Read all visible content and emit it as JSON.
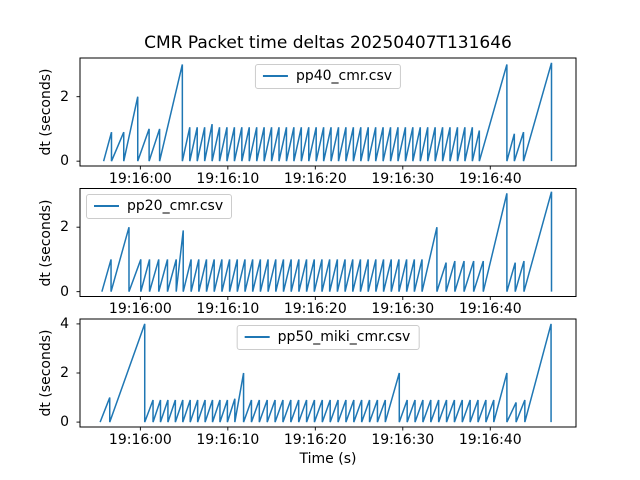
{
  "title": "CMR Packet time deltas 20250407T131646",
  "xlabel": "Time (s)",
  "ylabel": "dt (seconds)",
  "colors": {
    "line": "#1f77b4",
    "axes": "#000000",
    "text": "#000000",
    "legend_border": "#cccccc",
    "background": "#ffffff"
  },
  "x_axis": {
    "time_reference": "19:16:00",
    "tick_positions_s": [
      0,
      10,
      20,
      30,
      40
    ],
    "tick_labels": [
      "19:16:00",
      "19:16:10",
      "19:16:20",
      "19:16:30",
      "19:16:40"
    ],
    "xlim_s": [
      -6.9,
      49.8
    ]
  },
  "chart_data": [
    {
      "type": "line",
      "legend": "pp40_cmr.csv",
      "legend_loc": "upper center",
      "ylabel": "dt (seconds)",
      "yticks": [
        0,
        2
      ],
      "ytick_labels": [
        "0",
        "2"
      ],
      "ylim": [
        -0.15,
        3.2
      ],
      "start_s": -4.2,
      "points_time_dt": [
        [
          -3.3,
          0.9
        ],
        [
          -1.9,
          0.9
        ],
        [
          -0.3,
          2.0
        ],
        [
          1.0,
          1.0
        ],
        [
          2.2,
          1.0
        ],
        [
          4.8,
          3.0
        ],
        [
          5.65,
          1.05
        ],
        [
          6.5,
          1.05
        ],
        [
          7.35,
          1.05
        ],
        [
          8.2,
          1.15
        ],
        [
          9.05,
          1.05
        ],
        [
          9.9,
          1.05
        ],
        [
          10.75,
          1.05
        ],
        [
          11.6,
          1.05
        ],
        [
          12.45,
          1.05
        ],
        [
          13.3,
          1.05
        ],
        [
          14.15,
          1.05
        ],
        [
          15.0,
          1.05
        ],
        [
          15.85,
          1.05
        ],
        [
          16.7,
          1.05
        ],
        [
          17.55,
          1.05
        ],
        [
          18.4,
          1.05
        ],
        [
          19.25,
          1.05
        ],
        [
          20.1,
          1.05
        ],
        [
          20.95,
          1.05
        ],
        [
          21.8,
          1.05
        ],
        [
          22.65,
          1.05
        ],
        [
          23.5,
          1.05
        ],
        [
          24.35,
          1.05
        ],
        [
          25.2,
          1.05
        ],
        [
          26.05,
          1.05
        ],
        [
          26.9,
          1.05
        ],
        [
          27.75,
          1.05
        ],
        [
          28.6,
          1.05
        ],
        [
          29.45,
          1.05
        ],
        [
          30.3,
          1.05
        ],
        [
          31.15,
          1.05
        ],
        [
          32.0,
          1.05
        ],
        [
          32.85,
          1.05
        ],
        [
          33.7,
          1.05
        ],
        [
          34.55,
          1.05
        ],
        [
          35.4,
          1.05
        ],
        [
          36.25,
          1.05
        ],
        [
          37.1,
          1.05
        ],
        [
          37.95,
          1.05
        ],
        [
          38.75,
          0.95
        ],
        [
          41.9,
          3.0
        ],
        [
          42.75,
          0.85
        ],
        [
          43.8,
          0.9
        ],
        [
          47.0,
          3.05
        ]
      ]
    },
    {
      "type": "line",
      "legend": "pp20_cmr.csv",
      "legend_loc": "upper left",
      "ylabel": "dt (seconds)",
      "yticks": [
        0,
        2
      ],
      "ytick_labels": [
        "0",
        "2"
      ],
      "ylim": [
        -0.15,
        3.2
      ],
      "start_s": -4.4,
      "points_time_dt": [
        [
          -3.35,
          1.0
        ],
        [
          -1.3,
          2.0
        ],
        [
          0.05,
          1.0
        ],
        [
          1.05,
          1.0
        ],
        [
          2.1,
          1.0
        ],
        [
          3.1,
          1.0
        ],
        [
          4.1,
          1.0
        ],
        [
          4.9,
          1.9
        ],
        [
          5.8,
          1.0
        ],
        [
          6.68,
          1.0
        ],
        [
          7.56,
          1.0
        ],
        [
          8.44,
          1.0
        ],
        [
          9.32,
          1.0
        ],
        [
          10.2,
          1.0
        ],
        [
          11.08,
          1.0
        ],
        [
          11.96,
          1.0
        ],
        [
          12.84,
          1.0
        ],
        [
          13.72,
          1.0
        ],
        [
          14.6,
          1.0
        ],
        [
          15.48,
          1.0
        ],
        [
          16.36,
          1.0
        ],
        [
          17.24,
          1.0
        ],
        [
          18.12,
          1.0
        ],
        [
          19.0,
          1.0
        ],
        [
          19.88,
          1.0
        ],
        [
          20.76,
          1.0
        ],
        [
          21.64,
          1.0
        ],
        [
          22.52,
          1.0
        ],
        [
          23.4,
          1.0
        ],
        [
          24.28,
          1.0
        ],
        [
          25.16,
          1.0
        ],
        [
          26.04,
          1.0
        ],
        [
          26.92,
          1.0
        ],
        [
          27.8,
          1.0
        ],
        [
          28.68,
          1.0
        ],
        [
          29.56,
          1.0
        ],
        [
          30.44,
          1.0
        ],
        [
          31.32,
          1.0
        ],
        [
          32.2,
          1.0
        ],
        [
          33.9,
          2.0
        ],
        [
          34.95,
          0.9
        ],
        [
          35.95,
          0.95
        ],
        [
          37.0,
          0.95
        ],
        [
          38.1,
          0.95
        ],
        [
          39.2,
          0.95
        ],
        [
          41.9,
          3.05
        ],
        [
          42.85,
          0.9
        ],
        [
          43.85,
          0.95
        ],
        [
          47.0,
          3.1
        ]
      ]
    },
    {
      "type": "line",
      "legend": "pp50_miki_cmr.csv",
      "legend_loc": "upper center",
      "ylabel": "dt (seconds)",
      "yticks": [
        0,
        2,
        4
      ],
      "ytick_labels": [
        "0",
        "2",
        "4"
      ],
      "ylim": [
        -0.2,
        4.2
      ],
      "start_s": -4.6,
      "points_time_dt": [
        [
          -3.5,
          1.0
        ],
        [
          0.5,
          4.0
        ],
        [
          1.45,
          0.9
        ],
        [
          2.3,
          0.9
        ],
        [
          3.15,
          0.9
        ],
        [
          4.0,
          0.9
        ],
        [
          4.85,
          0.9
        ],
        [
          5.7,
          0.9
        ],
        [
          6.55,
          0.9
        ],
        [
          7.4,
          0.9
        ],
        [
          8.25,
          0.9
        ],
        [
          9.1,
          0.9
        ],
        [
          9.95,
          0.9
        ],
        [
          10.8,
          0.95
        ],
        [
          11.8,
          2.0
        ],
        [
          12.7,
          0.9
        ],
        [
          13.6,
          0.9
        ],
        [
          14.5,
          0.9
        ],
        [
          15.4,
          0.9
        ],
        [
          16.3,
          0.9
        ],
        [
          17.2,
          0.9
        ],
        [
          18.1,
          0.9
        ],
        [
          19.0,
          0.9
        ],
        [
          19.9,
          0.9
        ],
        [
          20.8,
          0.9
        ],
        [
          21.7,
          0.9
        ],
        [
          22.6,
          0.9
        ],
        [
          23.5,
          0.9
        ],
        [
          24.4,
          0.9
        ],
        [
          25.3,
          0.9
        ],
        [
          26.2,
          0.9
        ],
        [
          27.1,
          0.9
        ],
        [
          28.0,
          0.9
        ],
        [
          29.6,
          2.0
        ],
        [
          30.5,
          0.9
        ],
        [
          31.4,
          0.9
        ],
        [
          32.3,
          0.9
        ],
        [
          33.2,
          0.9
        ],
        [
          34.1,
          0.9
        ],
        [
          35.0,
          0.9
        ],
        [
          35.9,
          0.9
        ],
        [
          36.8,
          0.9
        ],
        [
          37.7,
          0.9
        ],
        [
          38.6,
          0.9
        ],
        [
          39.5,
          0.9
        ],
        [
          40.4,
          0.9
        ],
        [
          41.9,
          2.0
        ],
        [
          42.95,
          0.8
        ],
        [
          43.95,
          0.9
        ],
        [
          46.95,
          4.0
        ]
      ]
    }
  ]
}
